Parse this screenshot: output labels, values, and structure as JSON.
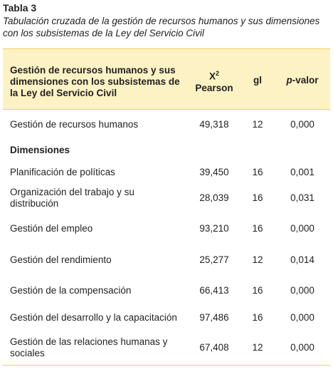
{
  "caption": {
    "label": "Tabla 3",
    "title": "Tabulación cruzada de la gestión de recursos humanos y sus dimensiones con los subsistemas de la Ley del Servicio Civil"
  },
  "table": {
    "header": [
      "Gestión de recursos humanos y sus dimensiones con los subsistemas de la Ley del Servicio Civil",
      {
        "symbol": "X",
        "sup": "2",
        "label": "Pearson"
      },
      "gl",
      {
        "italic": "p",
        "rest": "-valor"
      }
    ],
    "main_row": [
      "Gestión de recursos humanos",
      "49,318",
      "12",
      "0,000"
    ],
    "section": "Dimensiones",
    "rows": [
      [
        "Planificación de políticas",
        "39,450",
        "16",
        "0,001"
      ],
      [
        "Organización del trabajo y su distribución",
        "28,039",
        "16",
        "0,031"
      ],
      [
        "Gestión del empleo",
        "93,210",
        "16",
        "0,000"
      ],
      [
        "Gestión del rendimiento",
        "25,277",
        "12",
        "0,014"
      ],
      [
        "Gestión de la compensación",
        "66,413",
        "16",
        "0,000"
      ],
      [
        "Gestión del desarrollo y la capacitación",
        "97,486",
        "16",
        "0,000"
      ],
      [
        "Gestión de las relaciones humanas y sociales",
        "67,408",
        "12",
        "0,000"
      ]
    ]
  }
}
